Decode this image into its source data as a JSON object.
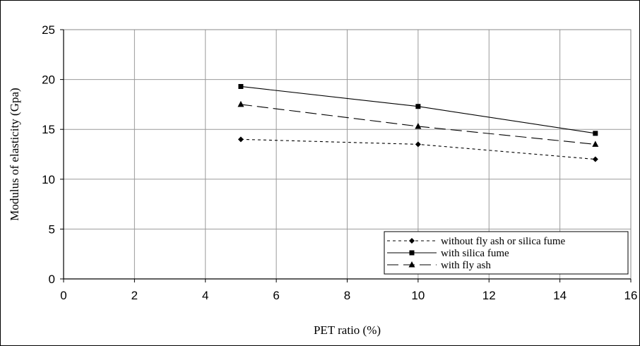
{
  "chart_data": {
    "type": "line",
    "xlabel": "PET ratio (%)",
    "ylabel": "Modulus of elasticity (Gpa)",
    "xlim": [
      0,
      16
    ],
    "ylim": [
      0,
      25
    ],
    "xticks": [
      0,
      2,
      4,
      6,
      8,
      10,
      12,
      14,
      16
    ],
    "yticks": [
      0,
      5,
      10,
      15,
      20,
      25
    ],
    "grid": true,
    "legend_position": "bottom-right",
    "x": [
      5,
      10,
      15
    ],
    "series": [
      {
        "name": "without fly ash or silica fume",
        "marker": "diamond",
        "dash": "short-dash",
        "values": [
          14.0,
          13.5,
          12.0
        ]
      },
      {
        "name": "with silica fume",
        "marker": "square",
        "dash": "solid",
        "values": [
          19.3,
          17.3,
          14.6
        ]
      },
      {
        "name": "with fly ash",
        "marker": "triangle",
        "dash": "long-dash",
        "values": [
          17.5,
          15.3,
          13.5
        ]
      }
    ]
  }
}
